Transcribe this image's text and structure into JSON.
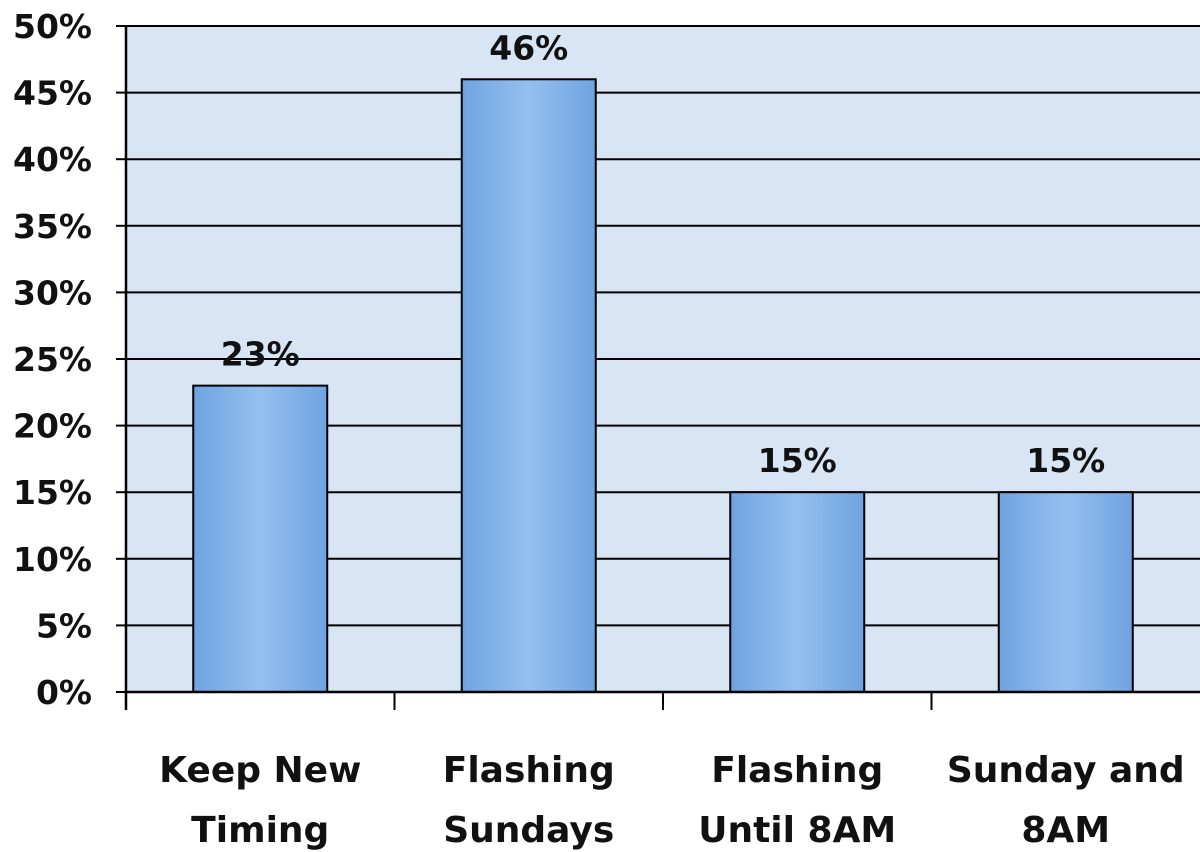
{
  "chart_data": {
    "type": "bar",
    "title": "",
    "xlabel": "",
    "ylabel": "",
    "categories": [
      [
        "Keep New",
        "Timing"
      ],
      [
        "Flashing",
        "Sundays"
      ],
      [
        "Flashing",
        "Until 8AM"
      ],
      [
        "Sunday and",
        "8AM"
      ]
    ],
    "values": [
      23,
      46,
      15,
      15
    ],
    "data_labels": [
      "23%",
      "46%",
      "15%",
      "15%"
    ],
    "ylim": [
      0,
      50
    ],
    "y_ticks": [
      0,
      5,
      10,
      15,
      20,
      25,
      30,
      35,
      40,
      45,
      50
    ],
    "y_tick_labels": [
      "0%",
      "5%",
      "10%",
      "15%",
      "20%",
      "25%",
      "30%",
      "35%",
      "40%",
      "45%",
      "50%"
    ],
    "grid": true,
    "legend": "none",
    "colors": {
      "bar": "#8db8ea",
      "bar_edge": "#000000",
      "plot_background": "#d8e5f4",
      "gridline": "#000000"
    }
  }
}
